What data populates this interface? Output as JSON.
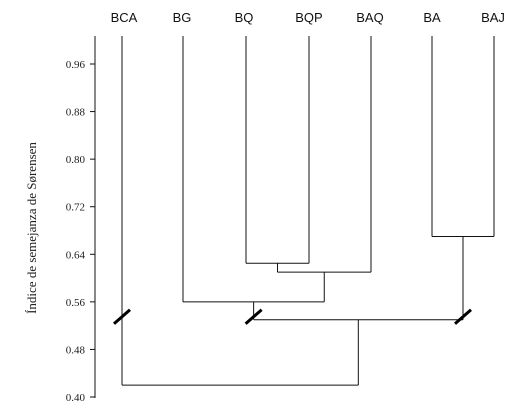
{
  "chart_data": {
    "type": "dendrogram",
    "ylabel": "Índice de semejanza de Sørensen",
    "ylim": [
      0.4,
      1.0
    ],
    "yticks": [
      "0.96",
      "0.88",
      "0.80",
      "0.72",
      "0.64",
      "0.56",
      "0.48",
      "0.40"
    ],
    "leaves": [
      "BCA",
      "BG",
      "BQ",
      "BQP",
      "BAQ",
      "BA",
      "BAJ"
    ],
    "merges": [
      {
        "id": "m1",
        "children": [
          "BQ",
          "BQP"
        ],
        "height": 0.625
      },
      {
        "id": "m2",
        "children": [
          "m1",
          "BAQ"
        ],
        "height": 0.61
      },
      {
        "id": "m3",
        "children": [
          "BG",
          "m2"
        ],
        "height": 0.56
      },
      {
        "id": "m4",
        "children": [
          "BA",
          "BAJ"
        ],
        "height": 0.67
      },
      {
        "id": "m5",
        "children": [
          "m3",
          "m4"
        ],
        "height": 0.53
      },
      {
        "id": "m6",
        "children": [
          "BCA",
          "m5"
        ],
        "height": 0.42
      }
    ],
    "axis_breaks_on": [
      "BCA",
      "m3",
      "m4"
    ]
  }
}
